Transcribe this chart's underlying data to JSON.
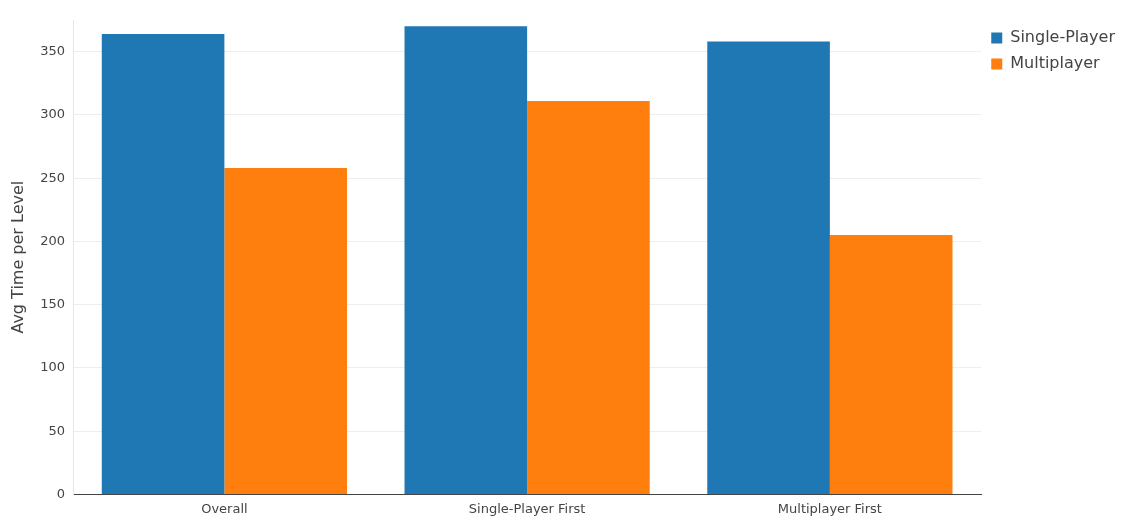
{
  "chart_data": {
    "type": "bar",
    "ylabel": "Avg Time per Level",
    "categories": [
      "Overall",
      "Single-Player First",
      "Multiplayer First"
    ],
    "series": [
      {
        "name": "Single-Player",
        "color": "#1f77b4",
        "values": [
          364,
          370,
          358
        ]
      },
      {
        "name": "Multiplayer",
        "color": "#ff7f0e",
        "values": [
          258,
          311,
          205
        ]
      }
    ],
    "ylim": [
      0,
      375
    ],
    "yticks": [
      0,
      50,
      100,
      150,
      200,
      250,
      300,
      350
    ],
    "grid": "y",
    "legend": "top right"
  }
}
